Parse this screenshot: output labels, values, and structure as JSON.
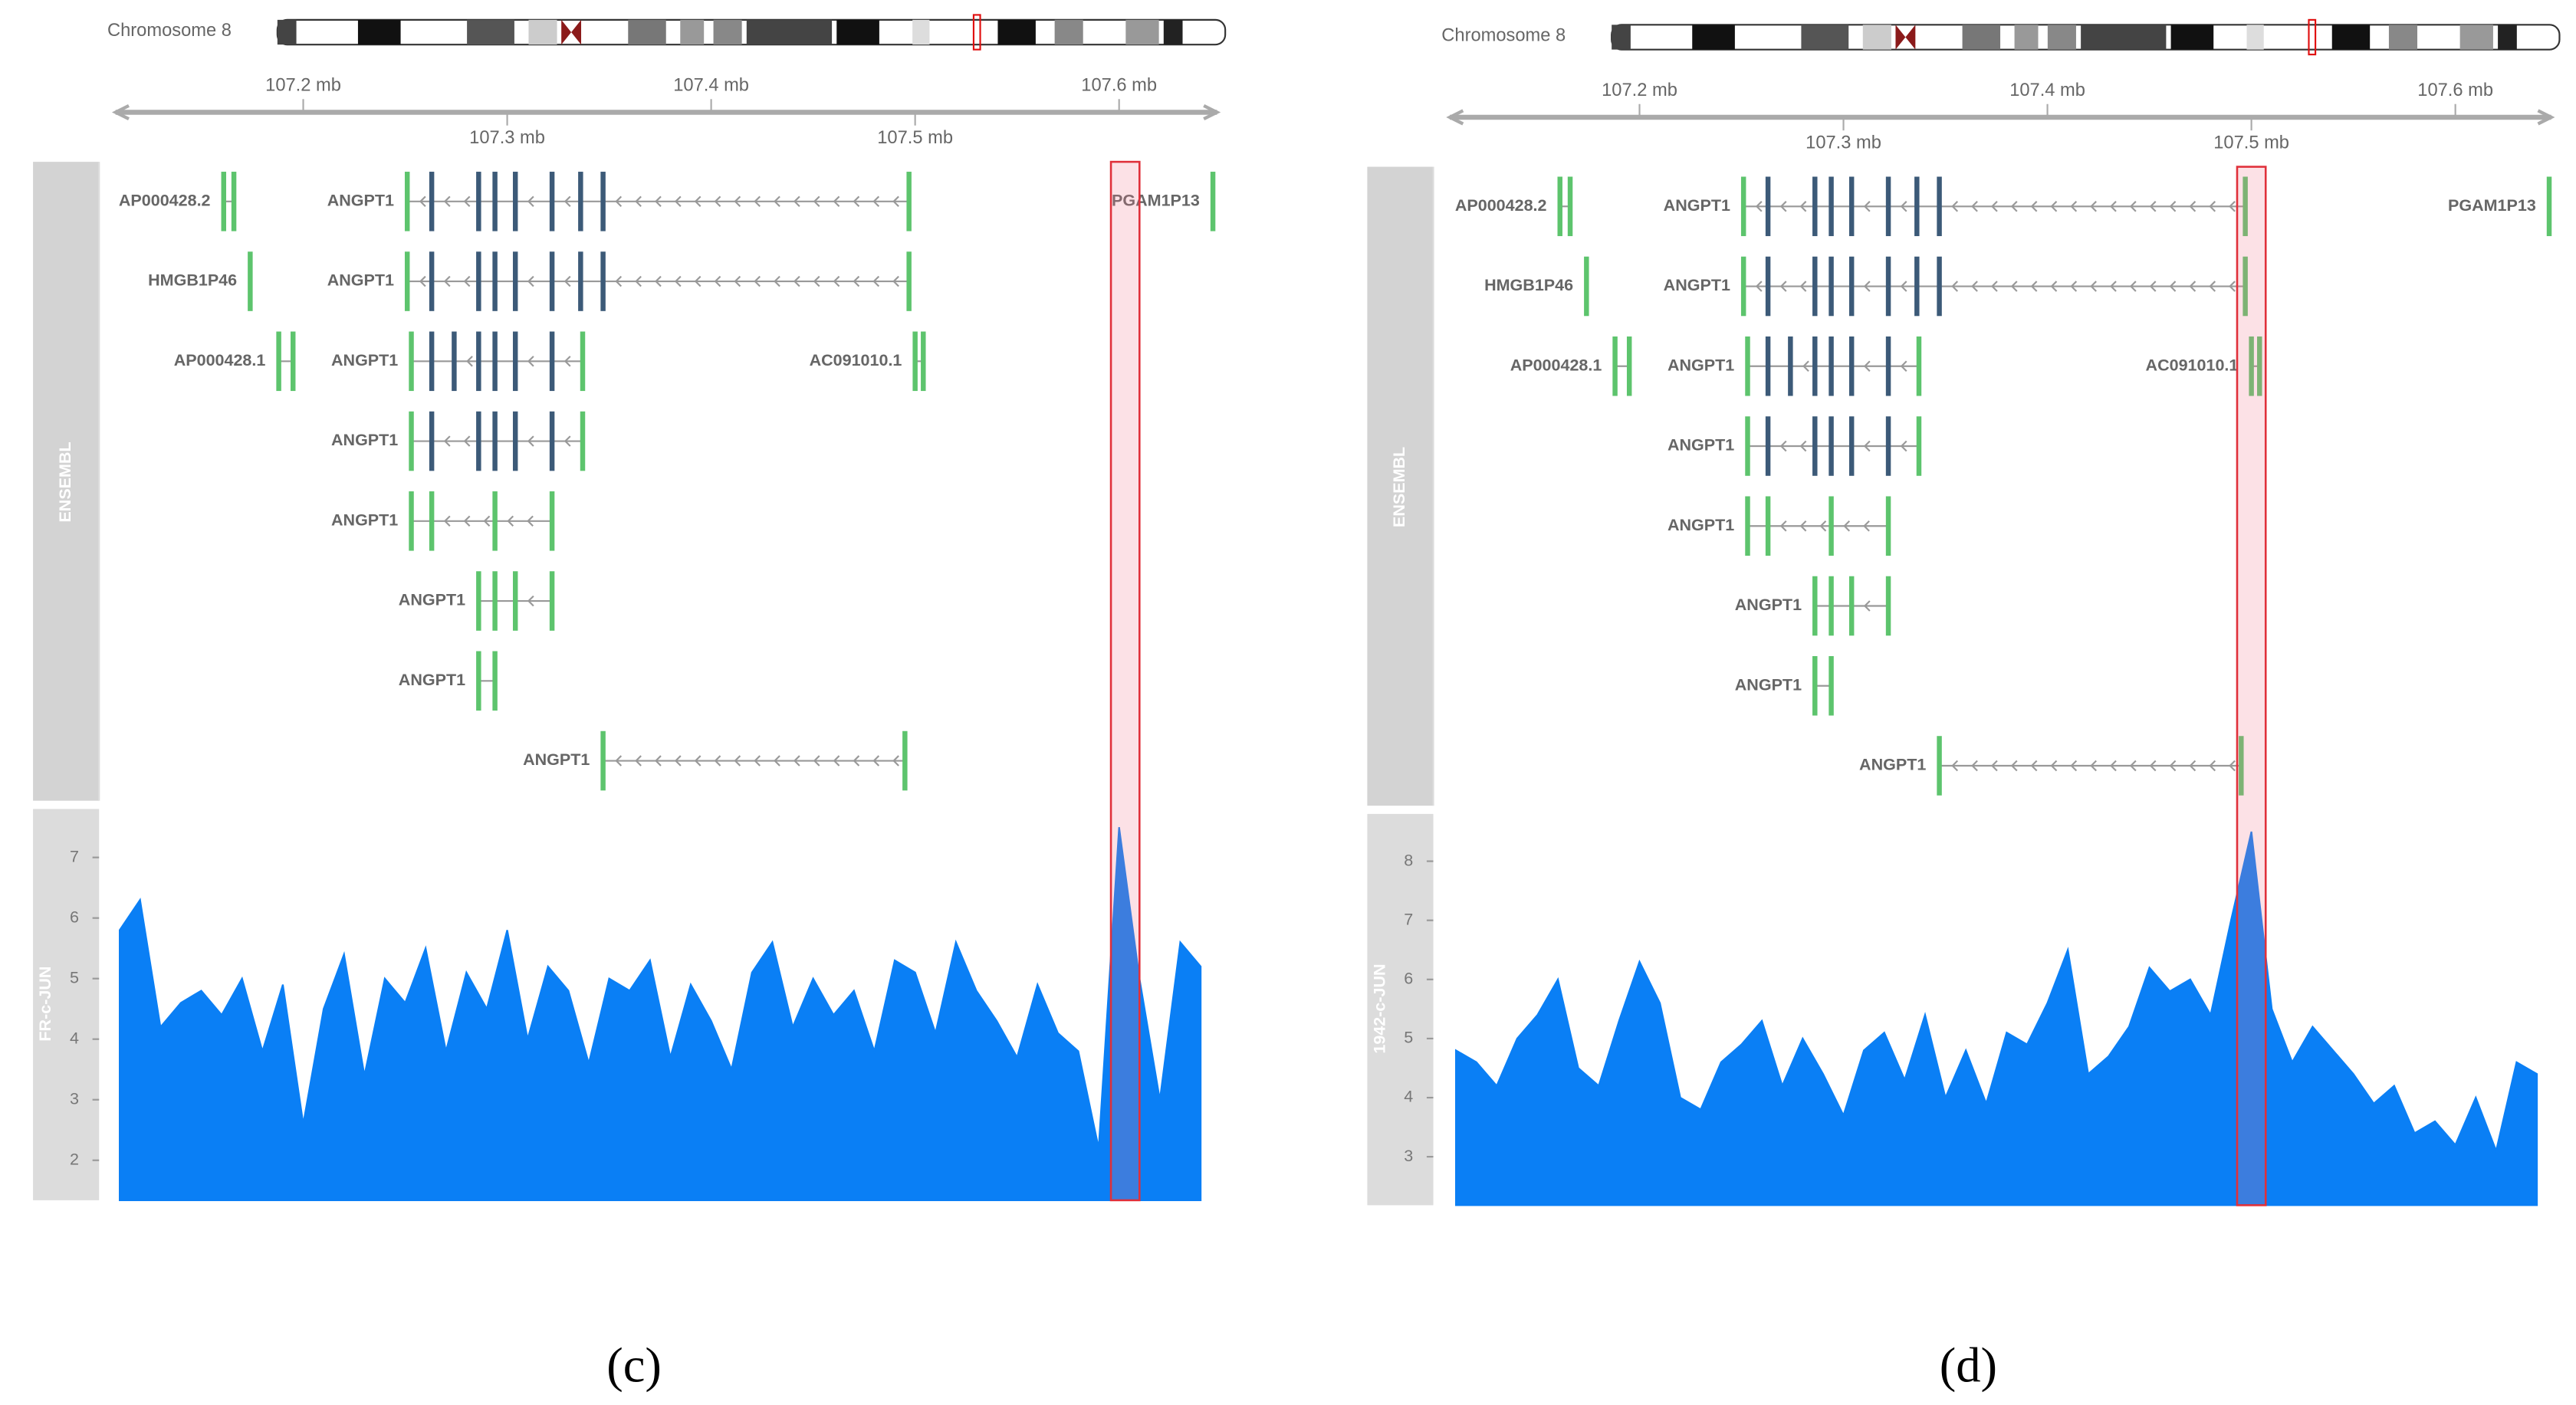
{
  "chart_data": [
    {
      "type": "genome-track",
      "label": "(c)",
      "chromosome": "Chromosome 8",
      "xlim": [
        107.108,
        107.648
      ],
      "xticks": [
        {
          "value": 107.2,
          "label": "107.2 mb"
        },
        {
          "value": 107.3,
          "label": "107.3 mb"
        },
        {
          "value": 107.4,
          "label": "107.4 mb"
        },
        {
          "value": 107.5,
          "label": "107.5 mb"
        },
        {
          "value": 107.6,
          "label": "107.6 mb"
        }
      ],
      "highlight": [
        107.596,
        107.61
      ],
      "gene_track": "ENSEMBL",
      "gene_color": "#5dc46d",
      "coding_color": "#3c5a78",
      "transcripts": [
        {
          "name": "AP000428.2",
          "row": 0,
          "exons": [
            107.161,
            107.166
          ]
        },
        {
          "name": "ANGPT1",
          "row": 0,
          "coding": true,
          "exons": [
            107.251,
            107.263,
            107.286,
            107.294,
            107.304,
            107.322,
            107.336,
            107.347,
            107.497
          ]
        },
        {
          "name": "PGAM1P13",
          "row": 0,
          "exons": [
            107.646
          ]
        },
        {
          "name": "HMGB1P46",
          "row": 1,
          "exons": [
            107.174
          ]
        },
        {
          "name": "ANGPT1",
          "row": 1,
          "coding": true,
          "exons": [
            107.251,
            107.263,
            107.286,
            107.294,
            107.304,
            107.322,
            107.336,
            107.347,
            107.497
          ]
        },
        {
          "name": "AP000428.1",
          "row": 2,
          "exons": [
            107.188,
            107.195
          ]
        },
        {
          "name": "ANGPT1",
          "row": 2,
          "coding": true,
          "exons": [
            107.253,
            107.263,
            107.274,
            107.286,
            107.294,
            107.304,
            107.322,
            107.337
          ]
        },
        {
          "name": "AC091010.1",
          "row": 2,
          "exons": [
            107.5,
            107.504
          ]
        },
        {
          "name": "ANGPT1",
          "row": 3,
          "coding": true,
          "exons": [
            107.253,
            107.263,
            107.286,
            107.294,
            107.304,
            107.322,
            107.337
          ]
        },
        {
          "name": "ANGPT1",
          "row": 4,
          "exons": [
            107.253,
            107.263,
            107.294,
            107.322
          ]
        },
        {
          "name": "ANGPT1",
          "row": 5,
          "exons": [
            107.286,
            107.294,
            107.304,
            107.322
          ]
        },
        {
          "name": "ANGPT1",
          "row": 6,
          "exons": [
            107.286,
            107.294
          ]
        },
        {
          "name": "ANGPT1",
          "row": 7,
          "exons": [
            107.347,
            107.495
          ]
        }
      ],
      "signal": {
        "name": "FR-c-JUN",
        "color": "#0a7ff5",
        "ylim": [
          1.34,
          7.8
        ],
        "yticks": [
          2,
          3,
          4,
          5,
          6,
          7
        ],
        "x": [
          107.11,
          107.12,
          107.13,
          107.14,
          107.15,
          107.16,
          107.17,
          107.18,
          107.19,
          107.2,
          107.21,
          107.22,
          107.23,
          107.24,
          107.25,
          107.26,
          107.27,
          107.28,
          107.29,
          107.3,
          107.31,
          107.32,
          107.33,
          107.34,
          107.35,
          107.36,
          107.37,
          107.38,
          107.39,
          107.4,
          107.41,
          107.42,
          107.43,
          107.44,
          107.45,
          107.46,
          107.47,
          107.48,
          107.49,
          107.5,
          107.51,
          107.52,
          107.53,
          107.54,
          107.55,
          107.56,
          107.57,
          107.58,
          107.59,
          107.6,
          107.61,
          107.62,
          107.63,
          107.64
        ],
        "values": [
          5.8,
          6.3,
          4.2,
          4.6,
          4.8,
          4.4,
          5.0,
          3.8,
          4.9,
          2.6,
          4.5,
          5.4,
          3.4,
          5.0,
          4.6,
          5.5,
          3.8,
          5.1,
          4.5,
          5.8,
          4.0,
          5.2,
          4.8,
          3.6,
          5.0,
          4.8,
          5.3,
          3.7,
          4.9,
          4.3,
          3.5,
          5.1,
          5.6,
          4.2,
          5.0,
          4.4,
          4.8,
          3.8,
          5.3,
          5.1,
          4.1,
          5.6,
          4.8,
          4.3,
          3.7,
          4.9,
          4.1,
          3.8,
          2.2,
          7.5,
          5.0,
          3.0,
          5.6,
          5.2
        ]
      }
    },
    {
      "type": "genome-track",
      "label": "(d)",
      "chromosome": "Chromosome 8",
      "xlim": [
        107.107,
        107.647
      ],
      "xticks": [
        {
          "value": 107.2,
          "label": "107.2 mb"
        },
        {
          "value": 107.3,
          "label": "107.3 mb"
        },
        {
          "value": 107.4,
          "label": "107.4 mb"
        },
        {
          "value": 107.5,
          "label": "107.5 mb"
        },
        {
          "value": 107.6,
          "label": "107.6 mb"
        }
      ],
      "highlight": [
        107.493,
        107.507
      ],
      "gene_track": "ENSEMBL",
      "gene_color": "#5dc46d",
      "coding_color": "#3c5a78",
      "transcripts": [
        {
          "name": "AP000428.2",
          "row": 0,
          "exons": [
            107.161,
            107.166
          ]
        },
        {
          "name": "ANGPT1",
          "row": 0,
          "coding": true,
          "exons": [
            107.251,
            107.263,
            107.286,
            107.294,
            107.304,
            107.322,
            107.336,
            107.347,
            107.497
          ]
        },
        {
          "name": "PGAM1P13",
          "row": 0,
          "exons": [
            107.646
          ]
        },
        {
          "name": "HMGB1P46",
          "row": 1,
          "exons": [
            107.174
          ]
        },
        {
          "name": "ANGPT1",
          "row": 1,
          "coding": true,
          "exons": [
            107.251,
            107.263,
            107.286,
            107.294,
            107.304,
            107.322,
            107.336,
            107.347,
            107.497
          ]
        },
        {
          "name": "AP000428.1",
          "row": 2,
          "exons": [
            107.188,
            107.195
          ]
        },
        {
          "name": "ANGPT1",
          "row": 2,
          "coding": true,
          "exons": [
            107.253,
            107.263,
            107.274,
            107.286,
            107.294,
            107.304,
            107.322,
            107.337
          ]
        },
        {
          "name": "AC091010.1",
          "row": 2,
          "exons": [
            107.5,
            107.504
          ]
        },
        {
          "name": "ANGPT1",
          "row": 3,
          "coding": true,
          "exons": [
            107.253,
            107.263,
            107.286,
            107.294,
            107.304,
            107.322,
            107.337
          ]
        },
        {
          "name": "ANGPT1",
          "row": 4,
          "exons": [
            107.253,
            107.263,
            107.294,
            107.322
          ]
        },
        {
          "name": "ANGPT1",
          "row": 5,
          "exons": [
            107.286,
            107.294,
            107.304,
            107.322
          ]
        },
        {
          "name": "ANGPT1",
          "row": 6,
          "exons": [
            107.286,
            107.294
          ]
        },
        {
          "name": "ANGPT1",
          "row": 7,
          "exons": [
            107.347,
            107.495
          ]
        }
      ],
      "signal": {
        "name": "1942-c-JUN",
        "color": "#0a7ff5",
        "ylim": [
          2.18,
          8.8
        ],
        "yticks": [
          3,
          4,
          5,
          6,
          7,
          8
        ],
        "x": [
          107.11,
          107.12,
          107.13,
          107.14,
          107.15,
          107.16,
          107.17,
          107.18,
          107.19,
          107.2,
          107.21,
          107.22,
          107.23,
          107.24,
          107.25,
          107.26,
          107.27,
          107.28,
          107.29,
          107.3,
          107.31,
          107.32,
          107.33,
          107.34,
          107.35,
          107.36,
          107.37,
          107.38,
          107.39,
          107.4,
          107.41,
          107.42,
          107.43,
          107.44,
          107.45,
          107.46,
          107.47,
          107.48,
          107.49,
          107.5,
          107.51,
          107.52,
          107.53,
          107.54,
          107.55,
          107.56,
          107.57,
          107.58,
          107.59,
          107.6,
          107.61,
          107.62,
          107.63,
          107.64
        ],
        "values": [
          4.8,
          4.6,
          4.2,
          5.0,
          5.4,
          6.0,
          4.5,
          4.2,
          5.3,
          6.3,
          5.6,
          4.0,
          3.8,
          4.6,
          4.9,
          5.3,
          4.2,
          5.0,
          4.4,
          3.7,
          4.8,
          5.1,
          4.3,
          5.4,
          4.0,
          4.8,
          3.9,
          5.1,
          4.9,
          5.6,
          6.5,
          4.4,
          4.7,
          5.2,
          6.2,
          5.8,
          6.0,
          5.4,
          7.0,
          8.5,
          5.5,
          4.6,
          5.2,
          4.8,
          4.4,
          3.9,
          4.2,
          3.4,
          3.6,
          3.2,
          4.0,
          3.1,
          4.6,
          4.4
        ]
      }
    }
  ]
}
